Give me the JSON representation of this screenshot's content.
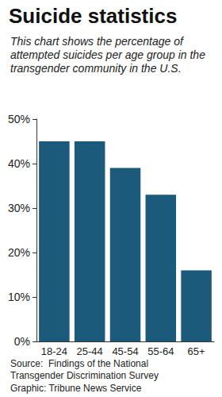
{
  "chart_data": {
    "type": "bar",
    "title": "Suicide statistics",
    "subtitle": "This chart shows the percentage of attempted suicides per age group in the transgender community in the U.S.",
    "categories": [
      "18-24",
      "25-44",
      "45-54",
      "55-64",
      "65+"
    ],
    "values": [
      45,
      45,
      39,
      33,
      16
    ],
    "color": "#1b5a7a",
    "ylim": [
      0,
      50
    ],
    "yticks": [
      {
        "value": 0,
        "label": "0%"
      },
      {
        "value": 10,
        "label": "10%"
      },
      {
        "value": 20,
        "label": "20%"
      },
      {
        "value": 30,
        "label": "30%"
      },
      {
        "value": 40,
        "label": "40%"
      },
      {
        "value": 50,
        "label": "50%"
      }
    ],
    "grid": false,
    "source": "Source:  Findings of the National Transgender Discrimination Survey",
    "credit": "Graphic: Tribune News Service"
  }
}
